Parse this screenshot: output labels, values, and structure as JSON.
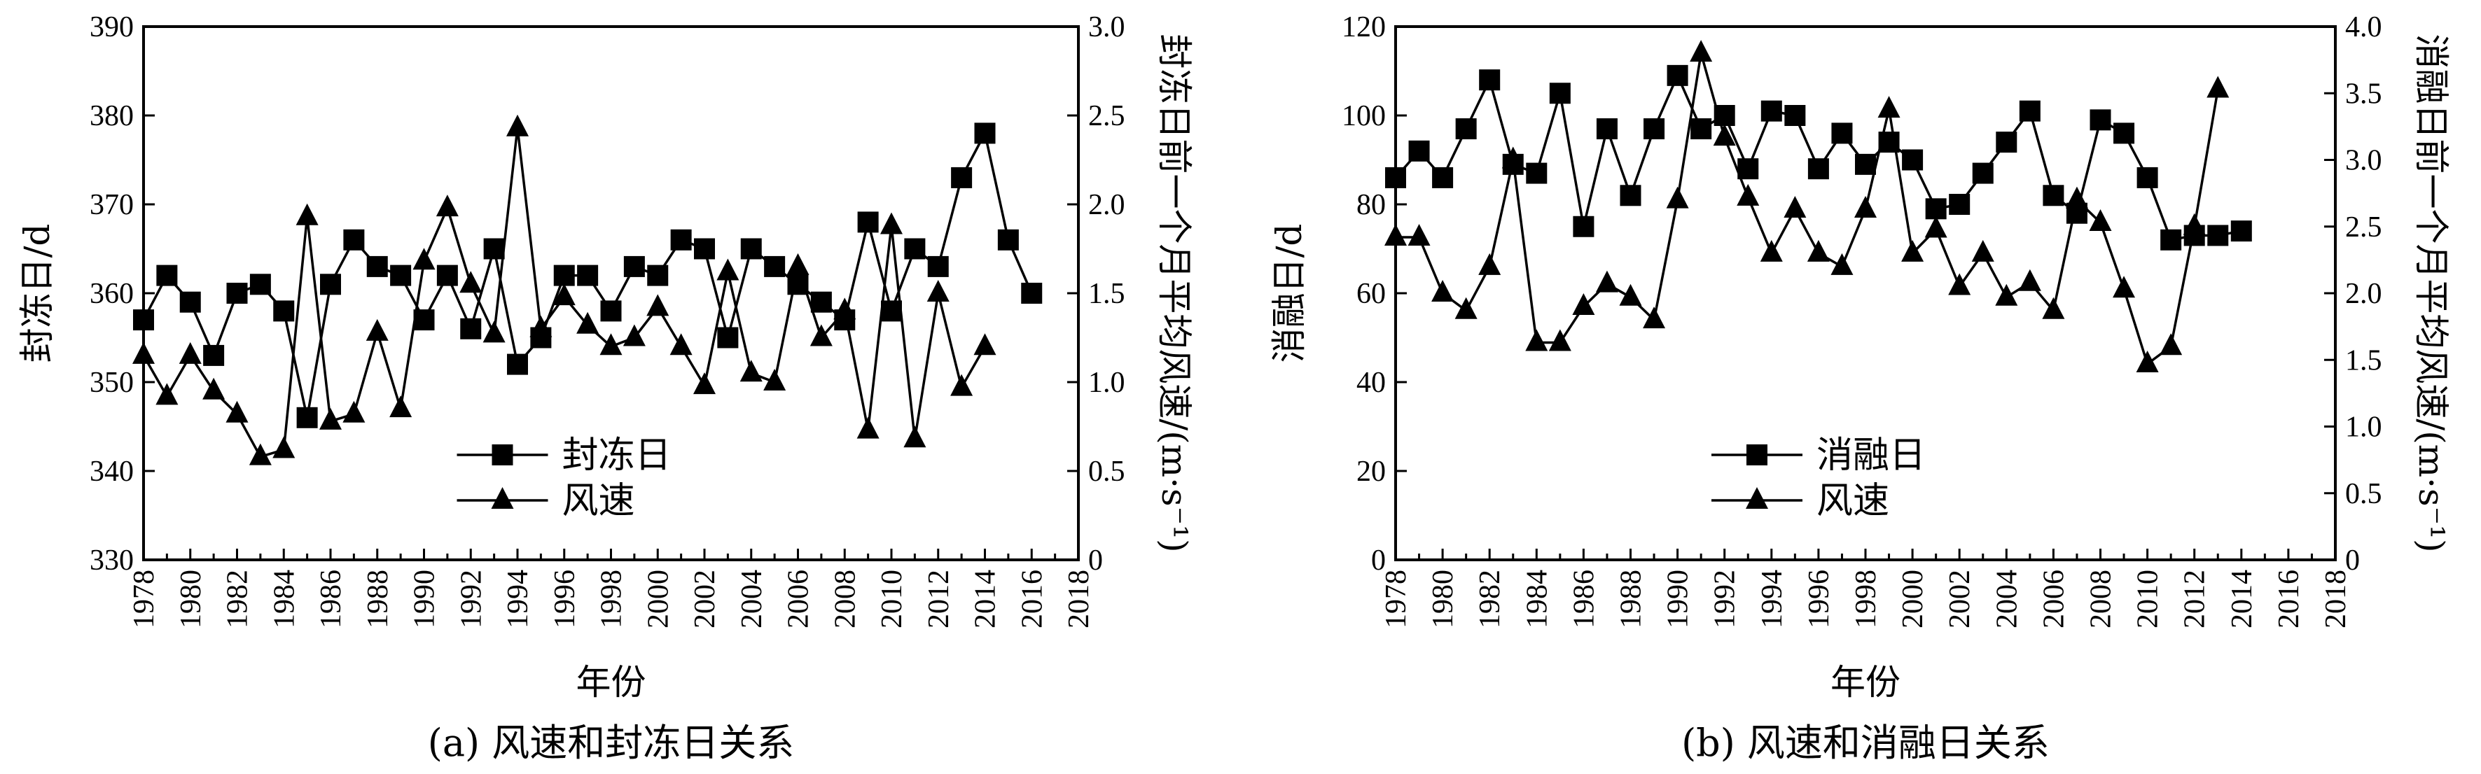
{
  "chart_data": [
    {
      "type": "line",
      "caption": "(a) 风速和封冻日关系",
      "xlabel": "年份",
      "ylabel": "封冻日/d",
      "y2label": "封冻日前一个月平均风速/(m·s⁻¹)",
      "x_ticks": [
        1978,
        1980,
        1982,
        1984,
        1986,
        1988,
        1990,
        1992,
        1994,
        1996,
        1998,
        2000,
        2002,
        2004,
        2006,
        2008,
        2010,
        2012,
        2014,
        2016,
        2018
      ],
      "xlim": [
        1978,
        2018
      ],
      "ylim": [
        330,
        390
      ],
      "y_ticks": [
        330,
        340,
        350,
        360,
        370,
        380,
        390
      ],
      "y2lim": [
        0,
        3.0
      ],
      "y2_ticks": [
        "0",
        "0.5",
        "1.0",
        "1.5",
        "2.0",
        "2.5",
        "3.0"
      ],
      "legend_position": "lower-center",
      "series": [
        {
          "name": "封冻日",
          "axis": "left",
          "marker": "square",
          "x": [
            1978,
            1979,
            1980,
            1981,
            1982,
            1983,
            1984,
            1985,
            1986,
            1987,
            1988,
            1989,
            1990,
            1991,
            1992,
            1993,
            1994,
            1995,
            1996,
            1997,
            1998,
            1999,
            2000,
            2001,
            2002,
            2003,
            2004,
            2005,
            2006,
            2007,
            2008,
            2009,
            2010,
            2011,
            2012,
            2013,
            2014,
            2015,
            2016,
            2017,
            2018
          ],
          "values": [
            357,
            362,
            359,
            353,
            360,
            361,
            358,
            346,
            361,
            366,
            363,
            362,
            357,
            362,
            356,
            365,
            352,
            355,
            362,
            362,
            358,
            363,
            362,
            366,
            365,
            355,
            365,
            363,
            361,
            359,
            357,
            368,
            358,
            365,
            363,
            373,
            378,
            366,
            360,
            null,
            null
          ]
        },
        {
          "name": "风速",
          "axis": "right",
          "marker": "triangle",
          "x": [
            1978,
            1979,
            1980,
            1981,
            1982,
            1983,
            1984,
            1985,
            1986,
            1987,
            1988,
            1989,
            1990,
            1991,
            1992,
            1993,
            1994,
            1995,
            1996,
            1997,
            1998,
            1999,
            2000,
            2001,
            2002,
            2003,
            2004,
            2005,
            2006,
            2007,
            2008,
            2009,
            2010,
            2011,
            2012,
            2013,
            2014,
            2015,
            2016,
            2017,
            2018
          ],
          "values": [
            1.15,
            0.92,
            1.15,
            0.95,
            0.82,
            0.58,
            0.62,
            1.93,
            0.78,
            0.82,
            1.28,
            0.85,
            1.68,
            1.98,
            1.55,
            1.27,
            2.43,
            1.3,
            1.48,
            1.32,
            1.2,
            1.25,
            1.42,
            1.2,
            0.98,
            1.62,
            1.05,
            1.0,
            1.65,
            1.25,
            1.4,
            0.73,
            1.88,
            0.68,
            1.5,
            0.97,
            1.2,
            null,
            null,
            null,
            null
          ]
        }
      ]
    },
    {
      "type": "line",
      "caption": "(b) 风速和消融日关系",
      "xlabel": "年份",
      "ylabel": "消融日/d",
      "y2label": "消融日前一个月平均风速/(m·s⁻¹)",
      "x_ticks": [
        1978,
        1980,
        1982,
        1984,
        1986,
        1988,
        1990,
        1992,
        1994,
        1996,
        1998,
        2000,
        2002,
        2004,
        2006,
        2008,
        2010,
        2012,
        2014,
        2016,
        2018
      ],
      "xlim": [
        1978,
        2018
      ],
      "ylim": [
        0,
        120
      ],
      "y_ticks": [
        0,
        20,
        40,
        60,
        80,
        100,
        120
      ],
      "y2lim": [
        0,
        4.0
      ],
      "y2_ticks": [
        "0",
        "0.5",
        "1.0",
        "1.5",
        "2.0",
        "2.5",
        "3.0",
        "3.5",
        "4.0"
      ],
      "legend_position": "lower-center",
      "series": [
        {
          "name": "消融日",
          "axis": "left",
          "marker": "square",
          "x": [
            1978,
            1979,
            1980,
            1981,
            1982,
            1983,
            1984,
            1985,
            1986,
            1987,
            1988,
            1989,
            1990,
            1991,
            1992,
            1993,
            1994,
            1995,
            1996,
            1997,
            1998,
            1999,
            2000,
            2001,
            2002,
            2003,
            2004,
            2005,
            2006,
            2007,
            2008,
            2009,
            2010,
            2011,
            2012,
            2013,
            2014,
            2015,
            2016,
            2017,
            2018
          ],
          "values": [
            86,
            92,
            86,
            97,
            108,
            89,
            87,
            105,
            75,
            97,
            82,
            97,
            109,
            97,
            100,
            88,
            101,
            100,
            88,
            96,
            89,
            94,
            90,
            79,
            80,
            87,
            94,
            101,
            82,
            78,
            99,
            96,
            86,
            72,
            73,
            73,
            74,
            null,
            null,
            null,
            null
          ]
        },
        {
          "name": "风速",
          "axis": "right",
          "marker": "triangle",
          "x": [
            1978,
            1979,
            1980,
            1981,
            1982,
            1983,
            1984,
            1985,
            1986,
            1987,
            1988,
            1989,
            1990,
            1991,
            1992,
            1993,
            1994,
            1995,
            1996,
            1997,
            1998,
            1999,
            2000,
            2001,
            2002,
            2003,
            2004,
            2005,
            2006,
            2007,
            2008,
            2009,
            2010,
            2011,
            2012,
            2013,
            2014,
            2015,
            2016,
            2017,
            2018
          ],
          "values": [
            2.42,
            2.42,
            2.0,
            1.87,
            2.2,
            3.0,
            1.63,
            1.63,
            1.9,
            2.07,
            1.97,
            1.8,
            2.7,
            3.8,
            3.17,
            2.72,
            2.3,
            2.63,
            2.3,
            2.2,
            2.63,
            3.38,
            2.3,
            2.48,
            2.05,
            2.3,
            1.97,
            2.08,
            1.87,
            2.7,
            2.53,
            2.03,
            1.47,
            1.6,
            2.5,
            3.53,
            null,
            null,
            null,
            null,
            null
          ]
        }
      ]
    }
  ]
}
